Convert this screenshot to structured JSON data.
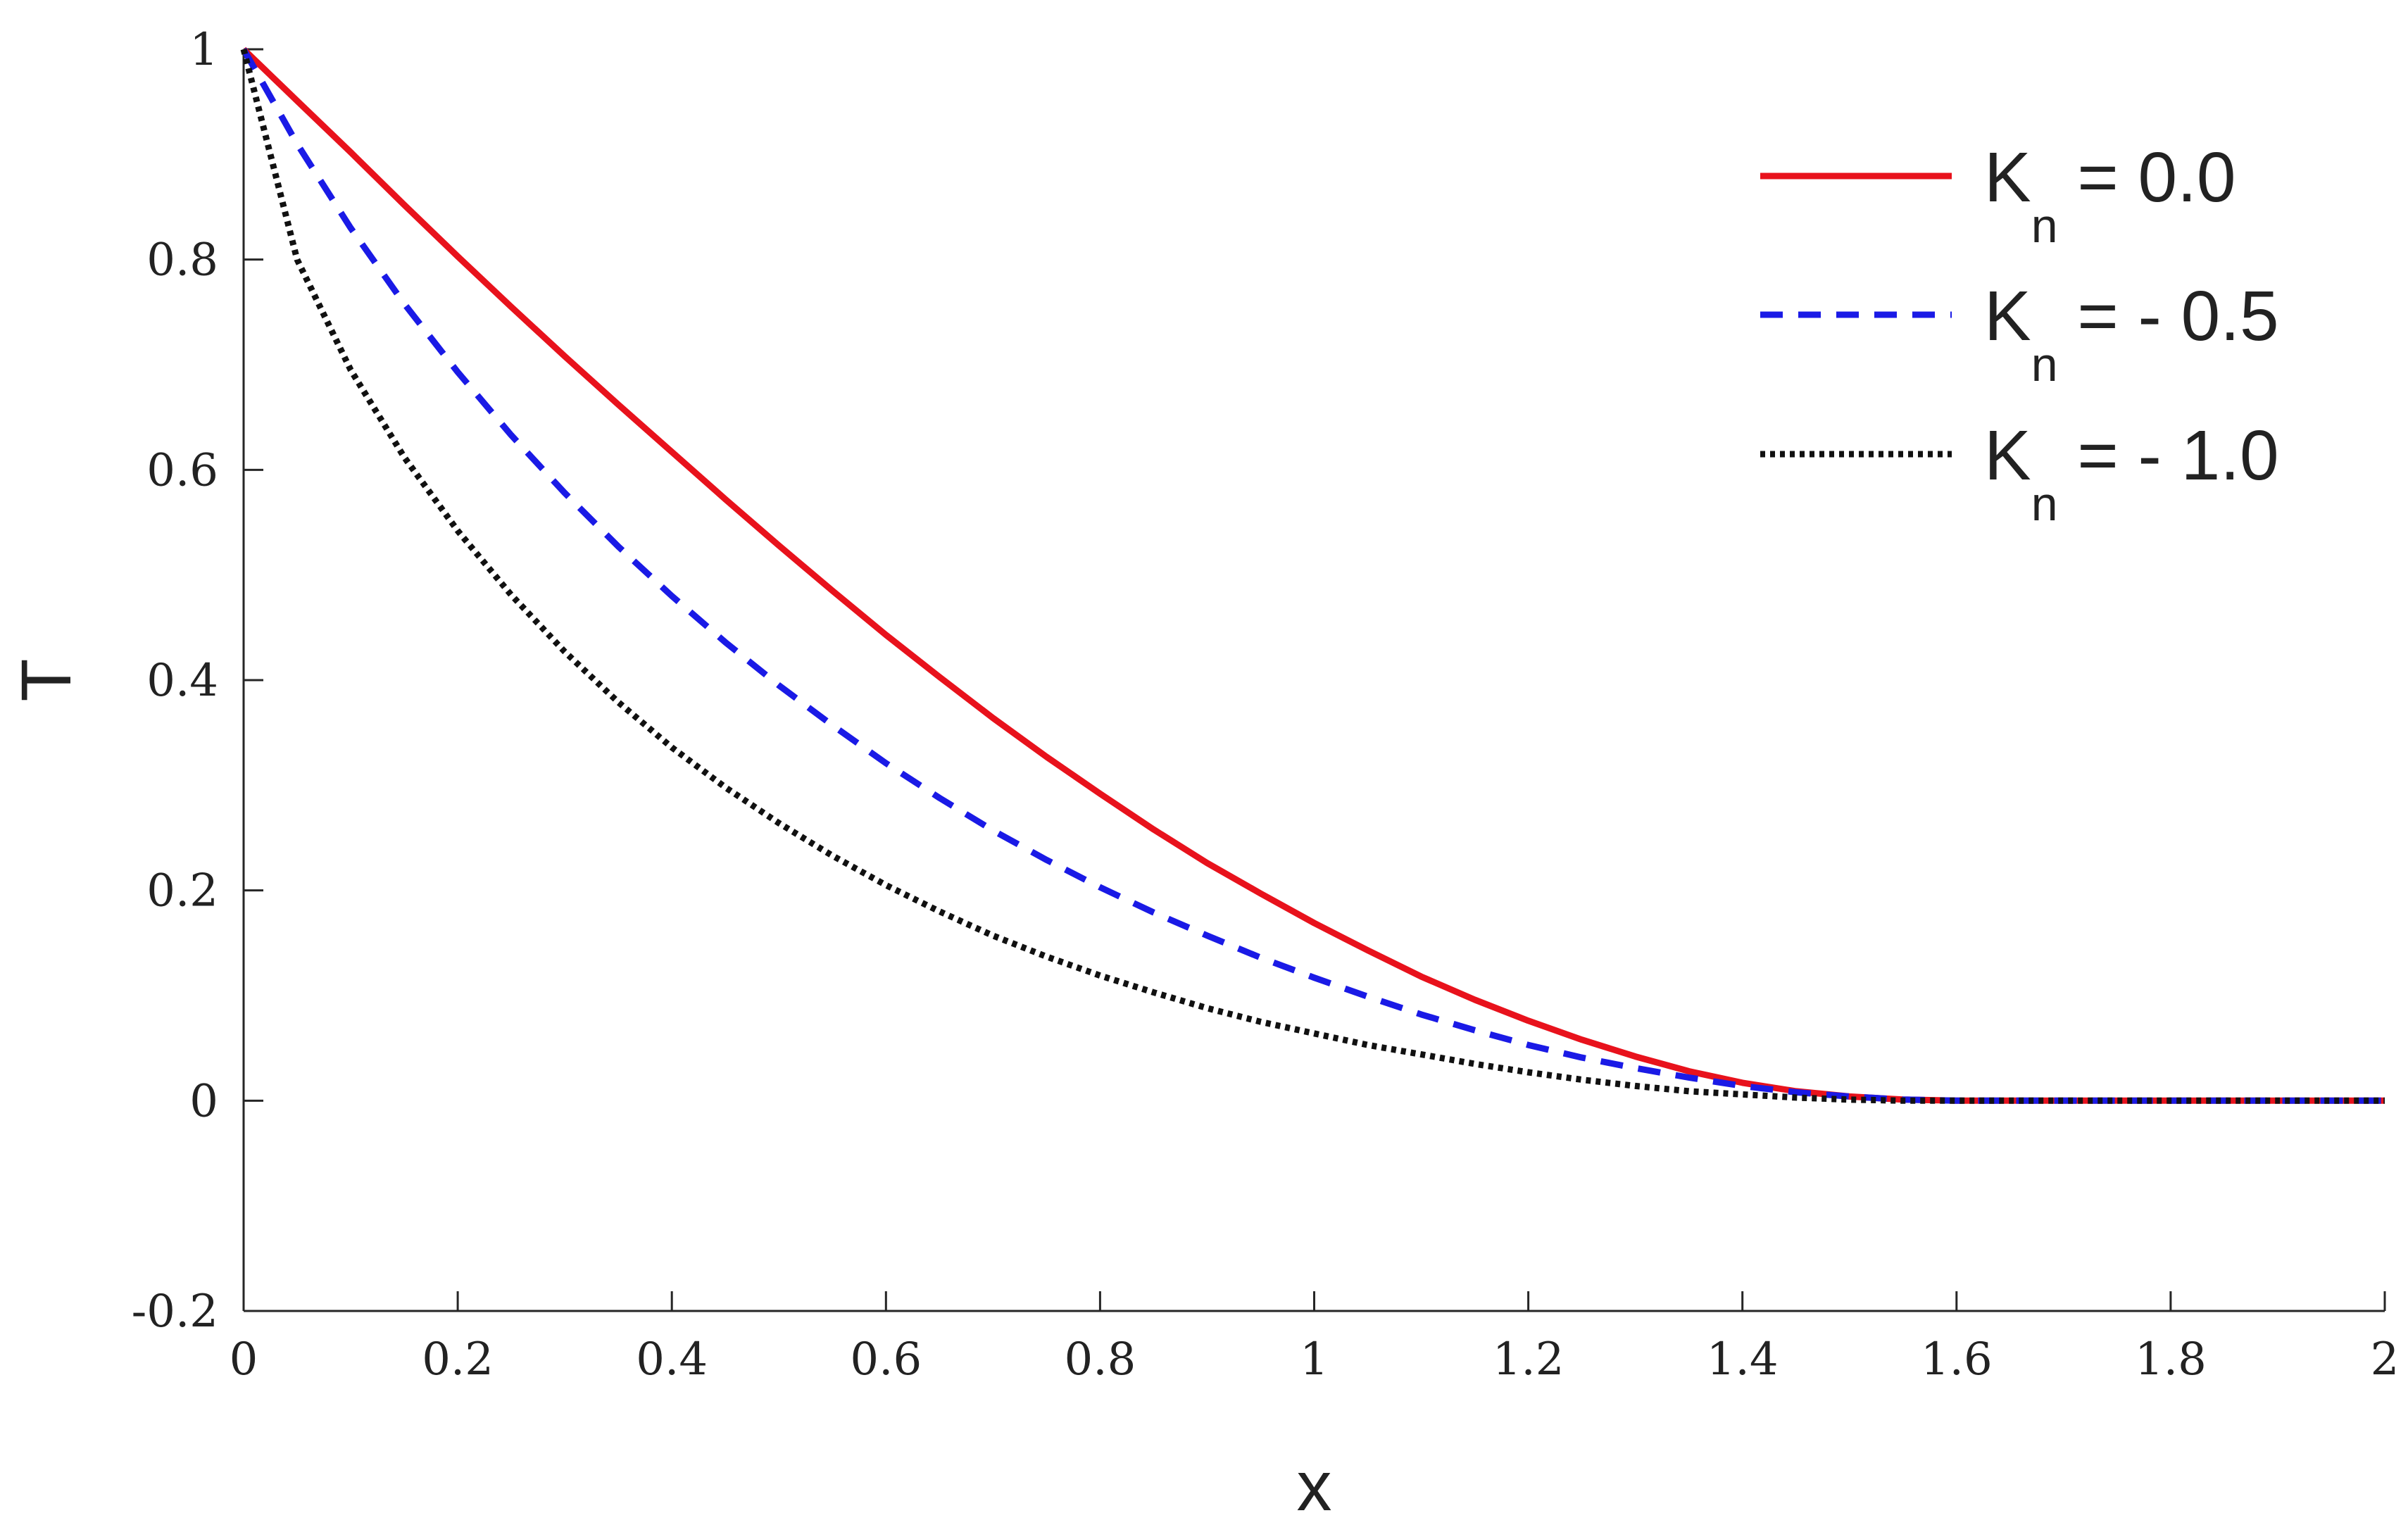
{
  "chart_data": {
    "type": "line",
    "title": "",
    "xlabel": "x",
    "ylabel": "T",
    "xlim": [
      0,
      2
    ],
    "ylim": [
      -0.2,
      1
    ],
    "xticks": [
      0,
      0.2,
      0.4,
      0.6,
      0.8,
      1,
      1.2,
      1.4,
      1.6,
      1.8,
      2
    ],
    "xtick_labels": [
      "0",
      "0.2",
      "0.4",
      "0.6",
      "0.8",
      "1",
      "1.2",
      "1.4",
      "1.6",
      "1.8",
      "2"
    ],
    "yticks": [
      -0.2,
      0,
      0.2,
      0.4,
      0.6,
      0.8,
      1
    ],
    "ytick_labels": [
      "-0.2",
      "0",
      "0.2",
      "0.4",
      "0.6",
      "0.8",
      "1"
    ],
    "grid": false,
    "legend_position": "top-right",
    "x": [
      0,
      0.05,
      0.1,
      0.15,
      0.2,
      0.25,
      0.3,
      0.35,
      0.4,
      0.45,
      0.5,
      0.55,
      0.6,
      0.65,
      0.7,
      0.75,
      0.8,
      0.85,
      0.9,
      0.95,
      1,
      1.05,
      1.1,
      1.15,
      1.2,
      1.25,
      1.3,
      1.35,
      1.4,
      1.45,
      1.5,
      1.55,
      1.6,
      1.65,
      1.7,
      1.75,
      1.8,
      1.85,
      1.9,
      1.95,
      2
    ],
    "series": [
      {
        "name": "K",
        "subscript": "n",
        "value_text": " = 0.0",
        "color": "#e8121c",
        "dash": "solid",
        "values": [
          1,
          0.951,
          0.902,
          0.852,
          0.803,
          0.755,
          0.708,
          0.662,
          0.617,
          0.572,
          0.528,
          0.485,
          0.443,
          0.403,
          0.364,
          0.327,
          0.292,
          0.258,
          0.226,
          0.197,
          0.169,
          0.143,
          0.118,
          0.096,
          0.076,
          0.058,
          0.042,
          0.028,
          0.017,
          0.009,
          0.004,
          0.001,
          0,
          0,
          0,
          0,
          0,
          0,
          0,
          0,
          0
        ]
      },
      {
        "name": "K",
        "subscript": "n",
        "value_text": " = - 0.5",
        "color": "#1a1ae6",
        "dash": "dashed",
        "values": [
          1,
          0.91,
          0.83,
          0.758,
          0.693,
          0.633,
          0.578,
          0.527,
          0.48,
          0.436,
          0.395,
          0.357,
          0.321,
          0.288,
          0.257,
          0.229,
          0.203,
          0.179,
          0.157,
          0.136,
          0.117,
          0.099,
          0.082,
          0.067,
          0.053,
          0.041,
          0.031,
          0.022,
          0.014,
          0.008,
          0.004,
          0.001,
          0,
          0,
          0,
          0,
          0,
          0,
          0,
          0,
          0
        ]
      },
      {
        "name": "K",
        "subscript": "n",
        "value_text": " = - 1.0",
        "color": "#111111",
        "dash": "dotted",
        "values": [
          1,
          0.8,
          0.695,
          0.612,
          0.542,
          0.481,
          0.427,
          0.379,
          0.336,
          0.298,
          0.264,
          0.233,
          0.205,
          0.18,
          0.157,
          0.137,
          0.119,
          0.103,
          0.088,
          0.075,
          0.064,
          0.053,
          0.044,
          0.035,
          0.027,
          0.02,
          0.014,
          0.009,
          0.006,
          0.003,
          0.001,
          0,
          0,
          0,
          0,
          0,
          0,
          0,
          0,
          0,
          0
        ]
      }
    ]
  }
}
